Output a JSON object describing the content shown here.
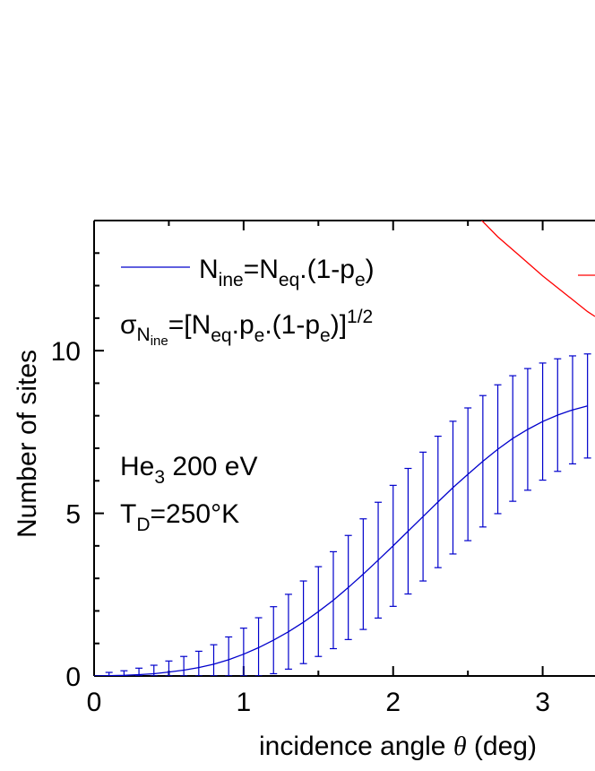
{
  "chart_data": {
    "type": "line",
    "xlabel": "incidence angle θ (deg)",
    "ylabel": "Number of sites",
    "xlim": [
      0,
      3.35
    ],
    "ylim": [
      0,
      14
    ],
    "x_ticks": [
      "0",
      "1",
      "2",
      "3"
    ],
    "y_ticks": [
      "0",
      "5",
      "10"
    ],
    "series": [
      {
        "name": "N_ine=N_eq.(1-p_e)",
        "color": "#0000cc",
        "x": [
          0,
          0.1,
          0.2,
          0.3,
          0.4,
          0.5,
          0.6,
          0.7,
          0.8,
          0.9,
          1.0,
          1.1,
          1.2,
          1.3,
          1.4,
          1.5,
          1.6,
          1.7,
          1.8,
          1.9,
          2.0,
          2.1,
          2.2,
          2.3,
          2.4,
          2.5,
          2.6,
          2.7,
          2.8,
          2.9,
          3.0,
          3.1,
          3.2,
          3.3
        ],
        "y": [
          0.0,
          0.01,
          0.02,
          0.04,
          0.07,
          0.12,
          0.18,
          0.26,
          0.36,
          0.5,
          0.67,
          0.87,
          1.1,
          1.36,
          1.65,
          1.98,
          2.33,
          2.72,
          3.13,
          3.56,
          4.0,
          4.45,
          4.9,
          5.35,
          5.79,
          6.2,
          6.6,
          6.97,
          7.3,
          7.58,
          7.82,
          8.02,
          8.18,
          8.3
        ],
        "error": [
          0.0,
          0.1,
          0.14,
          0.2,
          0.26,
          0.34,
          0.42,
          0.5,
          0.6,
          0.7,
          0.8,
          0.92,
          1.03,
          1.15,
          1.27,
          1.38,
          1.49,
          1.6,
          1.7,
          1.78,
          1.86,
          1.93,
          1.98,
          2.02,
          2.04,
          2.04,
          2.02,
          1.98,
          1.93,
          1.87,
          1.8,
          1.73,
          1.66,
          1.6
        ]
      },
      {
        "name": "",
        "color": "#ff0000",
        "x": [
          2.55,
          2.7,
          2.85,
          3.0,
          3.15,
          3.3,
          3.35
        ],
        "y": [
          14.2,
          13.5,
          12.9,
          12.3,
          11.75,
          11.2,
          11.05
        ]
      }
    ],
    "legend": {
      "line_label": "N_ine=N_eq.(1-p_e)",
      "sigma_label": "σ_N_ine=[N_eq.p_e.(1-p_e)]^1/2"
    },
    "annotations": [
      "He3 200 eV",
      "TD=250°K"
    ]
  },
  "text": {
    "legend_n": "N",
    "legend_n_sub": "ine",
    "legend_eq1": "=N",
    "legend_eq1_sub": "eq",
    "legend_rest": ".(1-p",
    "legend_rest_sub": "e",
    "legend_close": ")",
    "sigma_sym": "σ",
    "sigma_sub": "N",
    "sigma_subsub": "ine",
    "sigma_eq": "=[N",
    "sigma_eq_sub": "eq",
    "sigma_pe": ".p",
    "sigma_pe_sub": "e",
    "sigma_tail": ".(1-p",
    "sigma_tail_sub": "e",
    "sigma_close": ")]",
    "sigma_pow": "1/2",
    "ann1_main": "He",
    "ann1_sub": "3",
    "ann1_rest": " 200 eV",
    "ann2_main": "T",
    "ann2_sub": "D",
    "ann2_rest": "=250°K",
    "xlabel_main": "incidence angle ",
    "xlabel_theta": "θ",
    "xlabel_tail": " (deg)",
    "ylabel": "Number of sites"
  }
}
